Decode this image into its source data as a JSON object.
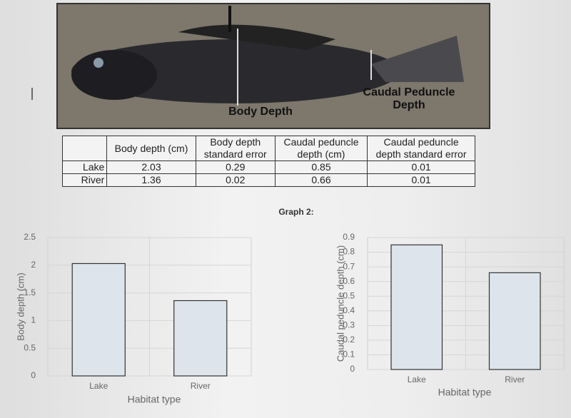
{
  "figure": {
    "body_label": "Body Depth",
    "caudal_label": [
      "Caudal Peduncle",
      "Depth"
    ]
  },
  "table": {
    "header": [
      "",
      "Body depth (cm)",
      "Body depth standard error",
      "Caudal peduncle depth (cm)",
      "Caudal peduncle depth standard error"
    ],
    "rows": [
      [
        "Lake",
        2.03,
        0.29,
        0.85,
        0.01
      ],
      [
        "River",
        1.36,
        0.02,
        0.66,
        0.01
      ]
    ]
  },
  "graph_label": "Graph 2:",
  "chart_data": [
    {
      "type": "bar",
      "x_label": "Habitat type",
      "y_label": "Body depth (cm)",
      "categories": [
        "Lake",
        "River"
      ],
      "values": [
        2.03,
        1.36
      ],
      "color": "#dde4ec",
      "ylim": [
        0,
        2.5
      ],
      "yticks": [
        0,
        0.5,
        1,
        1.5,
        2,
        2.5
      ],
      "grid": true
    },
    {
      "type": "bar",
      "x_label": "Habitat type",
      "y_label": "Caudal peduncle depth (cm)",
      "categories": [
        "Lake",
        "River"
      ],
      "values": [
        0.85,
        0.66
      ],
      "color": "#dde4ec",
      "ylim": [
        0,
        0.9
      ],
      "yticks": [
        0,
        0.1,
        0.2,
        0.3,
        0.4,
        0.5,
        0.6,
        0.7,
        0.8,
        0.9
      ],
      "grid": true
    }
  ]
}
